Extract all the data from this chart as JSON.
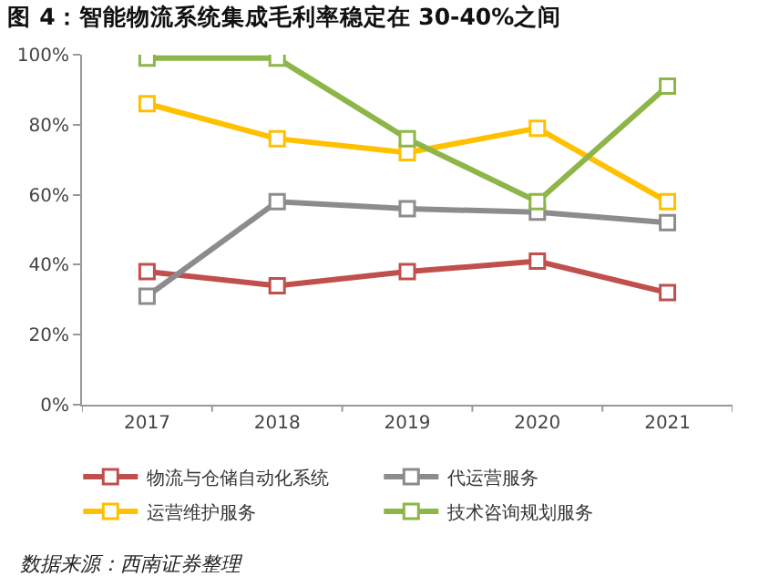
{
  "chart_data": {
    "type": "line",
    "title": "图 4：智能物流系统集成毛利率稳定在 30-40%之间",
    "categories": [
      "2017",
      "2018",
      "2019",
      "2020",
      "2021"
    ],
    "series": [
      {
        "name": "物流与仓储自动化系统",
        "color": "#c0504d",
        "values": [
          38,
          34,
          38,
          41,
          32
        ]
      },
      {
        "name": "代运营服务",
        "color": "#8c8c8c",
        "values": [
          31,
          58,
          56,
          55,
          52
        ]
      },
      {
        "name": "运营维护服务",
        "color": "#ffc000",
        "values": [
          86,
          76,
          72,
          79,
          58
        ]
      },
      {
        "name": "技术咨询规划服务",
        "color": "#8db548",
        "values": [
          99,
          99,
          76,
          58,
          91
        ]
      }
    ],
    "ylim": [
      0,
      100
    ],
    "yticks": [
      {
        "value": 0,
        "label": "0%"
      },
      {
        "value": 20,
        "label": "20%"
      },
      {
        "value": 40,
        "label": "40%"
      },
      {
        "value": 60,
        "label": "60%"
      },
      {
        "value": 80,
        "label": "80%"
      },
      {
        "value": 100,
        "label": "100%"
      }
    ],
    "grid": false,
    "legend": "bottom",
    "marker": "square",
    "line_style": "solid",
    "annotations": [
      "数据来源：西南证券整理"
    ]
  }
}
